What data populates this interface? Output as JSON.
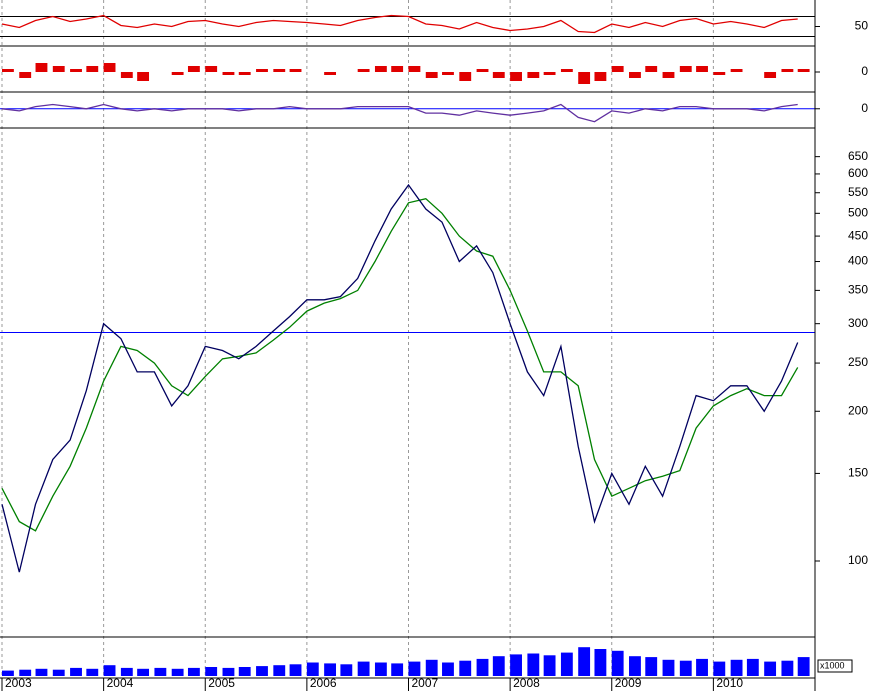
{
  "chart_data": [
    {
      "type": "line",
      "ylim": [
        15,
        95
      ],
      "yticks": [
        50
      ],
      "hlines": [
        30,
        70
      ],
      "hline_color": "#000000",
      "x": [
        2003,
        2003.17,
        2003.33,
        2003.5,
        2003.67,
        2003.83,
        2004,
        2004.17,
        2004.33,
        2004.5,
        2004.67,
        2004.83,
        2005,
        2005.17,
        2005.33,
        2005.5,
        2005.67,
        2005.83,
        2006,
        2006.17,
        2006.33,
        2006.5,
        2006.67,
        2006.83,
        2007,
        2007.17,
        2007.33,
        2007.5,
        2007.67,
        2007.83,
        2008,
        2008.17,
        2008.33,
        2008.5,
        2008.67,
        2008.83,
        2009,
        2009.17,
        2009.33,
        2009.5,
        2009.67,
        2009.83,
        2010,
        2010.17,
        2010.33,
        2010.5,
        2010.67,
        2010.83
      ],
      "xlim": [
        2003,
        2011
      ],
      "series": [
        {
          "color": "#e00000",
          "values": [
            55,
            48,
            62,
            70,
            60,
            65,
            72,
            52,
            48,
            55,
            50,
            60,
            62,
            55,
            50,
            58,
            62,
            60,
            58,
            55,
            52,
            62,
            68,
            72,
            70,
            55,
            52,
            45,
            58,
            48,
            42,
            45,
            50,
            62,
            40,
            38,
            55,
            48,
            58,
            50,
            62,
            66,
            55,
            60,
            55,
            48,
            62,
            65
          ]
        }
      ]
    },
    {
      "type": "bar",
      "ylim": [
        -6,
        6
      ],
      "yticks": [
        0
      ],
      "hlines": [],
      "hline_color": "#000000",
      "x": [
        2003,
        2003.17,
        2003.33,
        2003.5,
        2003.67,
        2003.83,
        2004,
        2004.17,
        2004.33,
        2004.5,
        2004.67,
        2004.83,
        2005,
        2005.17,
        2005.33,
        2005.5,
        2005.67,
        2005.83,
        2006,
        2006.17,
        2006.33,
        2006.5,
        2006.67,
        2006.83,
        2007,
        2007.17,
        2007.33,
        2007.5,
        2007.67,
        2007.83,
        2008,
        2008.17,
        2008.33,
        2008.5,
        2008.67,
        2008.83,
        2009,
        2009.17,
        2009.33,
        2009.5,
        2009.67,
        2009.83,
        2010,
        2010.17,
        2010.33,
        2010.5,
        2010.67,
        2010.83
      ],
      "xlim": [
        2003,
        2011
      ],
      "series": [
        {
          "color": "#e00000",
          "values": [
            1,
            -2,
            3,
            2,
            1,
            2,
            3,
            -2,
            -3,
            0,
            -1,
            2,
            2,
            -1,
            -1,
            1,
            1,
            1,
            0,
            -1,
            0,
            1,
            2,
            2,
            2,
            -2,
            -1,
            -3,
            1,
            -2,
            -3,
            -2,
            -1,
            1,
            -4,
            -3,
            2,
            -2,
            2,
            -2,
            2,
            2,
            -1,
            1,
            0,
            -2,
            1,
            1
          ]
        }
      ]
    },
    {
      "type": "line",
      "ylim": [
        -8,
        5
      ],
      "yticks": [
        0
      ],
      "hlines": [
        0
      ],
      "hline_color": "#0000ff",
      "x": [
        2003,
        2003.17,
        2003.33,
        2003.5,
        2003.67,
        2003.83,
        2004,
        2004.17,
        2004.33,
        2004.5,
        2004.67,
        2004.83,
        2005,
        2005.17,
        2005.33,
        2005.5,
        2005.67,
        2005.83,
        2006,
        2006.17,
        2006.33,
        2006.5,
        2006.67,
        2006.83,
        2007,
        2007.17,
        2007.33,
        2007.5,
        2007.67,
        2007.83,
        2008,
        2008.17,
        2008.33,
        2008.5,
        2008.67,
        2008.83,
        2009,
        2009.17,
        2009.33,
        2009.5,
        2009.67,
        2009.83,
        2010,
        2010.17,
        2010.33,
        2010.5,
        2010.67,
        2010.83
      ],
      "xlim": [
        2003,
        2011
      ],
      "series": [
        {
          "color": "#6030a0",
          "values": [
            0,
            -1,
            1,
            2,
            1,
            0,
            2,
            0,
            -1,
            0,
            -1,
            0,
            0,
            0,
            -1,
            0,
            0,
            1,
            0,
            0,
            0,
            1,
            1,
            1,
            1,
            -2,
            -2,
            -3,
            -1,
            -2,
            -3,
            -2,
            -1,
            2,
            -4,
            -6,
            -1,
            -2,
            0,
            -1,
            1,
            1,
            0,
            0,
            0,
            -1,
            1,
            2
          ]
        }
      ]
    },
    {
      "type": "line",
      "log_scale": true,
      "ylim": [
        71,
        686
      ],
      "yticks": [
        100,
        150,
        200,
        250,
        300,
        350,
        400,
        450,
        500,
        550,
        600,
        650
      ],
      "hlines": [
        288
      ],
      "hline_color": "#0000ff",
      "x": [
        2003,
        2003.17,
        2003.33,
        2003.5,
        2003.67,
        2003.83,
        2004,
        2004.17,
        2004.33,
        2004.5,
        2004.67,
        2004.83,
        2005,
        2005.17,
        2005.33,
        2005.5,
        2005.67,
        2005.83,
        2006,
        2006.17,
        2006.33,
        2006.5,
        2006.67,
        2006.83,
        2007,
        2007.17,
        2007.33,
        2007.5,
        2007.67,
        2007.83,
        2008,
        2008.17,
        2008.33,
        2008.5,
        2008.67,
        2008.83,
        2009,
        2009.17,
        2009.33,
        2009.5,
        2009.67,
        2009.83,
        2010,
        2010.17,
        2010.33,
        2010.5,
        2010.67,
        2010.83
      ],
      "xlim": [
        2003,
        2011
      ],
      "series": [
        {
          "color": "#008000",
          "values": [
            140,
            120,
            115,
            135,
            155,
            185,
            230,
            270,
            265,
            250,
            225,
            215,
            235,
            255,
            258,
            262,
            278,
            295,
            318,
            330,
            337,
            350,
            400,
            460,
            525,
            535,
            500,
            450,
            420,
            410,
            350,
            290,
            240,
            240,
            225,
            160,
            135,
            140,
            145,
            148,
            152,
            185,
            205,
            215,
            222,
            215,
            215,
            245
          ]
        },
        {
          "color": "#000060",
          "values": [
            130,
            95,
            130,
            160,
            175,
            220,
            300,
            280,
            240,
            240,
            205,
            225,
            270,
            265,
            255,
            270,
            290,
            310,
            335,
            335,
            340,
            370,
            440,
            510,
            570,
            510,
            480,
            400,
            430,
            380,
            300,
            240,
            215,
            270,
            170,
            120,
            150,
            130,
            155,
            135,
            170,
            215,
            210,
            225,
            225,
            200,
            230,
            275
          ]
        }
      ]
    },
    {
      "type": "bar",
      "ylim": [
        0,
        4000
      ],
      "unit_label": "x1000",
      "hlines": [],
      "hline_color": "#000000",
      "x": [
        2003,
        2003.17,
        2003.33,
        2003.5,
        2003.67,
        2003.83,
        2004,
        2004.17,
        2004.33,
        2004.5,
        2004.67,
        2004.83,
        2005,
        2005.17,
        2005.33,
        2005.5,
        2005.67,
        2005.83,
        2006,
        2006.17,
        2006.33,
        2006.5,
        2006.67,
        2006.83,
        2007,
        2007.17,
        2007.33,
        2007.5,
        2007.67,
        2007.83,
        2008,
        2008.17,
        2008.33,
        2008.5,
        2008.67,
        2008.83,
        2009,
        2009.17,
        2009.33,
        2009.5,
        2009.67,
        2009.83,
        2010,
        2010.17,
        2010.33,
        2010.5,
        2010.67,
        2010.83
      ],
      "xlim": [
        2003,
        2011
      ],
      "xticks": [
        2003,
        2004,
        2005,
        2006,
        2007,
        2008,
        2009,
        2010
      ],
      "series": [
        {
          "color": "#0000ff",
          "values": [
            600,
            700,
            800,
            700,
            900,
            800,
            1200,
            900,
            800,
            900,
            800,
            900,
            1000,
            900,
            1000,
            1100,
            1200,
            1300,
            1500,
            1400,
            1300,
            1600,
            1500,
            1400,
            1600,
            1800,
            1500,
            1700,
            1900,
            2200,
            2400,
            2500,
            2300,
            2600,
            3200,
            3000,
            2800,
            2200,
            2100,
            1800,
            1700,
            1900,
            1600,
            1800,
            1900,
            1600,
            1700,
            2100
          ]
        }
      ]
    }
  ]
}
